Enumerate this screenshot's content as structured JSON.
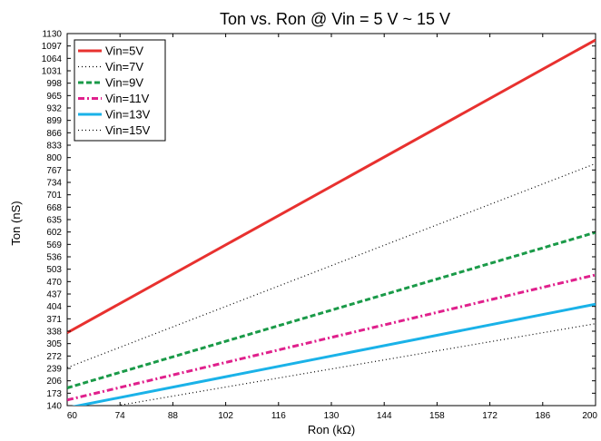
{
  "chart_data": {
    "type": "line",
    "title": "Ton vs. Ron @ Vin = 5 V ~ 15 V",
    "xlabel": "Ron (kΩ)",
    "ylabel": "Ton (nS)",
    "xlim": [
      60,
      200
    ],
    "ylim": [
      140,
      1130
    ],
    "x_ticks": [
      60,
      74,
      88,
      102,
      116,
      130,
      144,
      158,
      172,
      186,
      200
    ],
    "y_ticks": [
      140,
      173,
      206,
      239,
      272,
      305,
      338,
      371,
      404,
      437,
      470,
      503,
      536,
      569,
      602,
      635,
      668,
      701,
      734,
      767,
      800,
      833,
      866,
      899,
      932,
      965,
      998,
      1031,
      1064,
      1097,
      1130
    ],
    "grid": false,
    "legend_position": "top-left",
    "series": [
      {
        "name": "Vin=5V",
        "color": "#e8312f",
        "style": "solid",
        "x": [
          60,
          200
        ],
        "y": [
          334,
          1113
        ]
      },
      {
        "name": "Vin=7V",
        "color": "#000000",
        "style": "dotted",
        "x": [
          60,
          200
        ],
        "y": [
          241,
          784
        ]
      },
      {
        "name": "Vin=9V",
        "color": "#1a9a48",
        "style": "dashed",
        "x": [
          60,
          200
        ],
        "y": [
          187,
          601
        ]
      },
      {
        "name": "Vin=11V",
        "color": "#e0208c",
        "style": "dashdot",
        "x": [
          60,
          200
        ],
        "y": [
          155,
          488
        ]
      },
      {
        "name": "Vin=13V",
        "color": "#1ab2e8",
        "style": "solid",
        "x": [
          60,
          200
        ],
        "y": [
          134,
          410
        ]
      },
      {
        "name": "Vin=15V",
        "color": "#000000",
        "style": "dotted",
        "x": [
          60,
          200
        ],
        "y": [
          117,
          358
        ]
      }
    ]
  }
}
